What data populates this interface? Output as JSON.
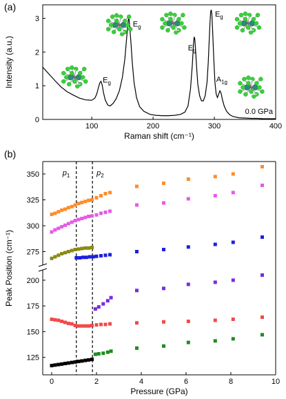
{
  "chart_data": [
    {
      "panel": "(a)",
      "type": "line",
      "xlabel": "Raman shift (cm⁻¹)",
      "ylabel": "Intensity (a.u.)",
      "xlim": [
        20,
        400
      ],
      "ylim": [
        0,
        3.4
      ],
      "xticks": [
        100,
        200,
        300,
        400
      ],
      "yticks": [
        0,
        1,
        2,
        3
      ],
      "condition_label": "0.0 GPa",
      "series": [
        {
          "color": "#000000",
          "x": [
            20,
            30,
            40,
            50,
            60,
            70,
            80,
            90,
            100,
            105,
            108,
            111,
            113,
            115,
            117,
            119,
            122,
            126,
            130,
            135,
            140,
            145,
            150,
            154,
            157,
            159,
            160,
            161,
            162,
            164,
            166,
            169,
            173,
            178,
            185,
            195,
            205,
            215,
            225,
            235,
            245,
            252,
            257,
            261,
            264,
            266,
            267,
            268,
            269,
            271,
            273,
            276,
            279,
            282,
            285,
            288,
            290,
            292,
            293,
            294,
            295,
            296,
            297,
            299,
            301,
            303,
            305,
            307,
            309,
            311,
            313,
            316,
            320,
            325,
            330,
            340,
            350,
            360,
            370,
            380,
            390,
            400
          ],
          "y": [
            1.55,
            1.35,
            1.15,
            0.96,
            0.82,
            0.72,
            0.63,
            0.58,
            0.57,
            0.63,
            0.75,
            0.95,
            1.08,
            1.13,
            1.02,
            0.8,
            0.58,
            0.43,
            0.4,
            0.48,
            0.62,
            0.85,
            1.25,
            1.8,
            2.45,
            2.85,
            3.0,
            2.95,
            2.75,
            2.25,
            1.7,
            1.1,
            0.65,
            0.38,
            0.24,
            0.15,
            0.12,
            0.11,
            0.11,
            0.12,
            0.15,
            0.22,
            0.4,
            0.9,
            1.6,
            2.25,
            2.45,
            2.4,
            2.15,
            1.55,
            1.05,
            0.7,
            0.55,
            0.55,
            0.7,
            1.1,
            1.7,
            2.5,
            2.9,
            3.2,
            3.25,
            3.1,
            2.7,
            1.8,
            1.1,
            0.75,
            0.65,
            0.75,
            0.85,
            0.78,
            0.6,
            0.4,
            0.24,
            0.14,
            0.09,
            0.05,
            0.04,
            0.03,
            0.03,
            0.02,
            0.02,
            0.02
          ]
        }
      ],
      "annotations": [
        {
          "label": "E",
          "sub": "g",
          "x": 118,
          "y": 1.1
        },
        {
          "label": "E",
          "sub": "g",
          "x": 167,
          "y": 2.75
        },
        {
          "label": "E",
          "sub": "g",
          "x": 257,
          "y": 2.05
        },
        {
          "label": "E",
          "sub": "g",
          "x": 301,
          "y": 3.05
        },
        {
          "label": "A",
          "sub": "1g",
          "x": 303,
          "y": 1.12
        }
      ],
      "insets": [
        {
          "name": "Eg-mode-115",
          "x": 72,
          "y": 1.25
        },
        {
          "name": "Eg-mode-160",
          "x": 145,
          "y": 2.8
        },
        {
          "name": "Eg-mode-268",
          "x": 233,
          "y": 2.85
        },
        {
          "name": "Eg-mode-295",
          "x": 355,
          "y": 2.85
        },
        {
          "name": "A1g-mode-310",
          "x": 360,
          "y": 0.95
        }
      ]
    },
    {
      "panel": "(b)",
      "type": "scatter",
      "xlabel": "Pressure (GPa)",
      "ylabel": "Peak Position (cm⁻¹)",
      "xlim": [
        -0.4,
        10
      ],
      "xticks": [
        0,
        2,
        4,
        6,
        8,
        10
      ],
      "axis_break": true,
      "upper_ylim": [
        262,
        362
      ],
      "upper_yticks": [
        275,
        300,
        325,
        350
      ],
      "lower_ylim": [
        108,
        210
      ],
      "lower_yticks": [
        125,
        150,
        175,
        200
      ],
      "vlines": [
        {
          "x": 1.1,
          "label": "p",
          "sub": "1"
        },
        {
          "x": 1.82,
          "label": "p",
          "sub": "2"
        }
      ],
      "series": [
        {
          "color": "#ff8c2a",
          "segment": "upper",
          "x": [
            0.0,
            0.15,
            0.3,
            0.45,
            0.6,
            0.75,
            0.9,
            1.05,
            1.2,
            1.35,
            1.5,
            1.65,
            1.8,
            2.0,
            2.2,
            2.4,
            2.6,
            3.8,
            5.0,
            6.1,
            7.3,
            8.1,
            9.4
          ],
          "y": [
            311,
            312,
            313.5,
            315,
            316,
            317.5,
            318.5,
            320,
            321.5,
            322.5,
            323.5,
            324.5,
            325,
            327,
            329,
            331,
            332,
            338,
            341,
            345,
            347.5,
            350,
            357
          ]
        },
        {
          "color": "#e55ae5",
          "segment": "upper",
          "x": [
            0.0,
            0.15,
            0.3,
            0.45,
            0.6,
            0.75,
            0.9,
            1.05,
            1.2,
            1.35,
            1.5,
            1.65,
            1.8,
            2.0,
            2.2,
            2.4,
            2.6,
            3.8,
            5.0,
            6.1,
            7.3,
            8.1,
            9.4
          ],
          "y": [
            294,
            296,
            297.5,
            299,
            300.5,
            302,
            303.5,
            305,
            306,
            307,
            308,
            309,
            309.5,
            310.5,
            312,
            313,
            314,
            320,
            322,
            326,
            329,
            332,
            339
          ]
        },
        {
          "color": "#8a8a16",
          "segment": "upper",
          "x": [
            0.0,
            0.15,
            0.3,
            0.45,
            0.6,
            0.75,
            0.9,
            1.05,
            1.2,
            1.35,
            1.5,
            1.65,
            1.8
          ],
          "y": [
            268.5,
            270,
            271.5,
            273,
            274,
            275,
            276,
            277,
            277.5,
            278,
            278.5,
            278.5,
            279
          ]
        },
        {
          "color": "#1f1fe0",
          "segment": "upper",
          "x": [
            1.1,
            1.25,
            1.4,
            1.55,
            1.7,
            1.85,
            2.0,
            2.2,
            2.4,
            2.6,
            3.8,
            5.0,
            6.1,
            7.3,
            8.1,
            9.4
          ],
          "y": [
            269,
            269,
            269.5,
            269.5,
            270,
            270,
            270.5,
            271,
            271.5,
            272,
            275,
            277,
            279.5,
            282,
            284,
            289
          ]
        },
        {
          "color": "#7a2be0",
          "segment": "lower",
          "x": [
            1.95,
            2.1,
            2.3,
            2.5,
            2.65,
            3.8,
            5.0,
            6.1,
            7.3,
            8.1,
            9.4
          ],
          "y": [
            172,
            174,
            177,
            180,
            183,
            190,
            192,
            196,
            198,
            200,
            205
          ]
        },
        {
          "color": "#f04a4a",
          "segment": "lower",
          "x": [
            0.0,
            0.15,
            0.3,
            0.45,
            0.6,
            0.75,
            0.9,
            1.05,
            1.2,
            1.35,
            1.5,
            1.65,
            1.8,
            2.0,
            2.2,
            2.4,
            2.6,
            3.8,
            5.0,
            6.1,
            7.3,
            8.1,
            9.4
          ],
          "y": [
            162,
            161.5,
            161,
            160,
            159,
            158,
            157.5,
            156,
            155.5,
            155.5,
            155.5,
            155.5,
            156,
            156.5,
            157,
            157,
            157.5,
            158.5,
            159.5,
            160,
            161,
            162,
            164
          ]
        },
        {
          "color": "#000000",
          "segment": "lower",
          "x": [
            0.0,
            0.15,
            0.3,
            0.45,
            0.6,
            0.75,
            0.9,
            1.05,
            1.2,
            1.35,
            1.5,
            1.65,
            1.8
          ],
          "y": [
            117,
            117.5,
            118,
            118.5,
            119,
            119.5,
            120,
            120.5,
            121,
            121.5,
            122,
            122.5,
            123
          ]
        },
        {
          "color": "#1e8c1e",
          "segment": "lower",
          "x": [
            1.95,
            2.1,
            2.3,
            2.5,
            2.65,
            3.8,
            5.0,
            6.1,
            7.3,
            8.1,
            9.4
          ],
          "y": [
            128,
            128.5,
            129,
            130,
            131,
            134,
            136,
            139.5,
            141,
            143,
            147
          ]
        }
      ]
    }
  ],
  "colors": {
    "Cl": "#36d13a",
    "Ti": "#2e8a7a",
    "mode-arrow": "#f0f0f0"
  }
}
